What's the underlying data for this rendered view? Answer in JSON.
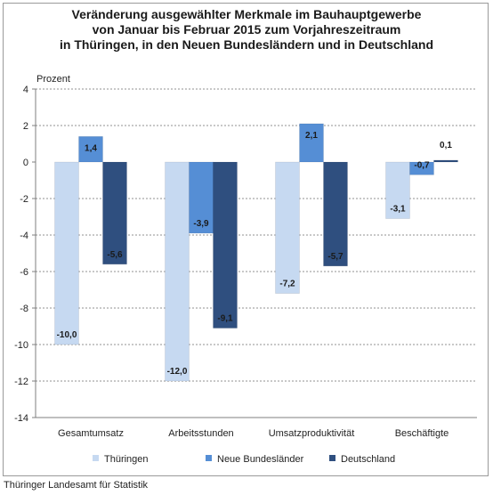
{
  "title_lines": [
    "Veränderung ausgewählter Merkmale im Bauhauptgewerbe",
    "von Januar bis Februar 2015 zum Vorjahreszeitraum",
    "in Thüringen, in den Neuen Bundesländern und in Deutschland"
  ],
  "footer": "Thüringer Landesamt für Statistik",
  "colors": {
    "thueringen": "#c6d9f1",
    "nbl": "#558ed5",
    "deutschland": "#2f4f7f"
  },
  "chart_data": {
    "type": "bar",
    "title": "Veränderung ausgewählter Merkmale im Bauhauptgewerbe von Januar bis Februar 2015 zum Vorjahreszeitraum in Thüringen, in den Neuen Bundesländern und in Deutschland",
    "ylabel": "Prozent",
    "xlabel": "",
    "ylim": [
      -14,
      4
    ],
    "yticks": [
      4,
      2,
      0,
      -2,
      -4,
      -6,
      -8,
      -10,
      -12,
      -14
    ],
    "grid": true,
    "legend_position": "bottom",
    "categories": [
      "Gesamtumsatz",
      "Arbeitsstunden",
      "Umsatzproduktivität",
      "Beschäftigte"
    ],
    "series": [
      {
        "name": "Thüringen",
        "color": "#c6d9f1",
        "values": [
          -10.0,
          -12.0,
          -7.2,
          -3.1
        ],
        "labels": [
          "-10,0",
          "-12,0",
          "-7,2",
          "-3,1"
        ]
      },
      {
        "name": "Neue Bundesländer",
        "color": "#558ed5",
        "values": [
          1.4,
          -3.9,
          2.1,
          -0.7
        ],
        "labels": [
          "1,4",
          "-3,9",
          "2,1",
          "-0,7"
        ]
      },
      {
        "name": "Deutschland",
        "color": "#2f4f7f",
        "values": [
          -5.6,
          -9.1,
          -5.7,
          0.1
        ],
        "labels": [
          "-5,6",
          "-9,1",
          "-5,7",
          "0,1"
        ]
      }
    ]
  }
}
